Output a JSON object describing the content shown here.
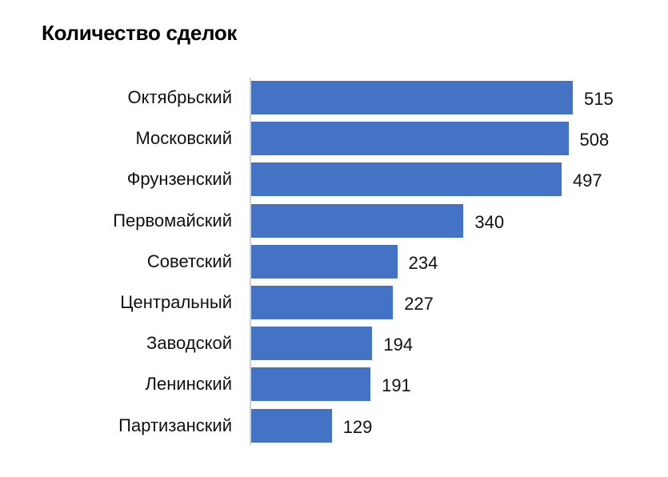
{
  "chart_data": {
    "type": "bar",
    "orientation": "horizontal",
    "title": "Количество сделок",
    "xlabel": "",
    "ylabel": "",
    "categories": [
      "Октябрьский",
      "Московский",
      "Фрунзенский",
      "Первомайский",
      "Советский",
      "Центральный",
      "Заводской",
      "Ленинский",
      "Партизанский"
    ],
    "values": [
      515,
      508,
      497,
      340,
      234,
      227,
      194,
      191,
      129
    ],
    "data_labels": true,
    "grid": false,
    "legend": "none",
    "bar_color": "#4472c4"
  }
}
